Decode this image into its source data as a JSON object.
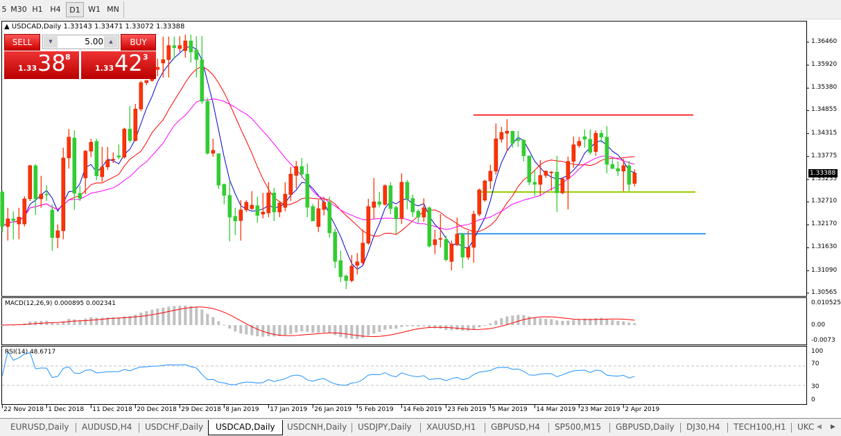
{
  "toolbar": {
    "timeframes": [
      "5",
      "M30",
      "H1",
      "H4",
      "D1",
      "W1",
      "MN"
    ],
    "active": "D1"
  },
  "chart": {
    "title": "USDCAD,Daily",
    "ohlc_header": "1.33143 1.33471 1.33072 1.33388",
    "last_price": "1.33388",
    "price_axis": [
      "1.36460",
      "1.35920",
      "1.35380",
      "1.34855",
      "1.34315",
      "1.33775",
      "1.33235",
      "1.32710",
      "1.32170",
      "1.31630",
      "1.31090",
      "1.30565"
    ],
    "dates": [
      "22 Nov 2018",
      "1 Dec 2018",
      "11 Dec 2018",
      "20 Dec 2018",
      "29 Dec 2018",
      "8 Jan 2019",
      "17 Jan 2019",
      "26 Jan 2019",
      "5 Feb 2019",
      "14 Feb 2019",
      "23 Feb 2019",
      "5 Mar 2019",
      "14 Mar 2019",
      "23 Mar 2019",
      "2 Apr 2019"
    ],
    "colors": {
      "bull": "#ff3300",
      "bear": "#33cc33",
      "ma_fast": "#0000cc",
      "ma_mid": "#ff0000",
      "ma_slow": "#ff00ff",
      "macd_hist": "#c0c0c0",
      "macd_signal": "#ff0000",
      "rsi": "#1e90ff"
    },
    "levels": [
      {
        "price": 1.3475,
        "color": "#ff3333"
      },
      {
        "price": 1.3294,
        "color": "#99cc00"
      },
      {
        "price": 1.3196,
        "color": "#3399ee"
      }
    ],
    "candles": [
      [
        1.3294,
        1.3297,
        1.32,
        1.3213
      ],
      [
        1.3213,
        1.3257,
        1.318,
        1.3231
      ],
      [
        1.3231,
        1.3249,
        1.3183,
        1.3227
      ],
      [
        1.3219,
        1.3257,
        1.3183,
        1.3235
      ],
      [
        1.3219,
        1.3284,
        1.3213,
        1.3278
      ],
      [
        1.3278,
        1.3358,
        1.3273,
        1.3356
      ],
      [
        1.3356,
        1.3359,
        1.324,
        1.3278
      ],
      [
        1.3278,
        1.3332,
        1.3257,
        1.3289
      ],
      [
        1.3289,
        1.331,
        1.3273,
        1.3288
      ],
      [
        1.3252,
        1.3265,
        1.3156,
        1.3187
      ],
      [
        1.3187,
        1.3218,
        1.3162,
        1.3203
      ],
      [
        1.3203,
        1.3398,
        1.3183,
        1.3374
      ],
      [
        1.3374,
        1.3442,
        1.3349,
        1.3423
      ],
      [
        1.3421,
        1.3439,
        1.3252,
        1.3291
      ],
      [
        1.3291,
        1.3309,
        1.3273,
        1.3279
      ],
      [
        1.3327,
        1.3393,
        1.3289,
        1.339
      ],
      [
        1.339,
        1.3419,
        1.3376,
        1.3411
      ],
      [
        1.3413,
        1.3419,
        1.3322,
        1.3332
      ],
      [
        1.333,
        1.34,
        1.3318,
        1.3353
      ],
      [
        1.3353,
        1.34,
        1.3346,
        1.3369
      ],
      [
        1.3369,
        1.3387,
        1.3362,
        1.3371
      ],
      [
        1.3379,
        1.3406,
        1.3371,
        1.3376
      ],
      [
        1.3376,
        1.3445,
        1.3372,
        1.3442
      ],
      [
        1.3442,
        1.3496,
        1.341,
        1.3415
      ],
      [
        1.3415,
        1.3501,
        1.3413,
        1.3489
      ],
      [
        1.3489,
        1.3555,
        1.3484,
        1.3551
      ],
      [
        1.3551,
        1.3556,
        1.3545,
        1.3556
      ],
      [
        1.3556,
        1.359,
        1.3553,
        1.3582
      ],
      [
        1.3582,
        1.3607,
        1.3566,
        1.3587
      ],
      [
        1.3597,
        1.3659,
        1.3563,
        1.3605
      ],
      [
        1.3605,
        1.3659,
        1.3563,
        1.3638
      ],
      [
        1.3638,
        1.3659,
        1.3607,
        1.3633
      ],
      [
        1.3631,
        1.366,
        1.3623,
        1.3638
      ],
      [
        1.3626,
        1.3664,
        1.361,
        1.3649
      ],
      [
        1.3649,
        1.3664,
        1.3598,
        1.3623
      ],
      [
        1.3628,
        1.366,
        1.3563,
        1.3605
      ],
      [
        1.3605,
        1.366,
        1.3501,
        1.3507
      ],
      [
        1.3507,
        1.3515,
        1.3382,
        1.3385
      ],
      [
        1.3385,
        1.3419,
        1.3377,
        1.3392
      ],
      [
        1.3384,
        1.3385,
        1.3301,
        1.331
      ],
      [
        1.3312,
        1.3314,
        1.3265,
        1.3286
      ],
      [
        1.3286,
        1.3318,
        1.3178,
        1.3235
      ],
      [
        1.3237,
        1.3257,
        1.3193,
        1.3226
      ],
      [
        1.3227,
        1.3275,
        1.318,
        1.3252
      ],
      [
        1.3252,
        1.3275,
        1.3247,
        1.327
      ],
      [
        1.3255,
        1.3296,
        1.3252,
        1.3263
      ],
      [
        1.3262,
        1.3283,
        1.3222,
        1.3239
      ],
      [
        1.3242,
        1.3292,
        1.3232,
        1.3247
      ],
      [
        1.3245,
        1.3317,
        1.3235,
        1.3292
      ],
      [
        1.3292,
        1.3304,
        1.3226,
        1.3247
      ],
      [
        1.3247,
        1.3273,
        1.3235,
        1.3268
      ],
      [
        1.3258,
        1.3317,
        1.3249,
        1.3289
      ],
      [
        1.3288,
        1.3353,
        1.3273,
        1.3336
      ],
      [
        1.3333,
        1.3367,
        1.3302,
        1.3354
      ],
      [
        1.3354,
        1.3374,
        1.3327,
        1.3336
      ],
      [
        1.3336,
        1.3361,
        1.3235,
        1.3258
      ],
      [
        1.326,
        1.3266,
        1.3226,
        1.3226
      ],
      [
        1.3213,
        1.3276,
        1.32,
        1.3255
      ],
      [
        1.3253,
        1.3283,
        1.3239,
        1.327
      ],
      [
        1.327,
        1.3283,
        1.3187,
        1.3198
      ],
      [
        1.32,
        1.3208,
        1.3115,
        1.3131
      ],
      [
        1.3133,
        1.3156,
        1.3082,
        1.3095
      ],
      [
        1.3097,
        1.31,
        1.3066,
        1.3086
      ],
      [
        1.3086,
        1.3146,
        1.3082,
        1.312
      ],
      [
        1.3122,
        1.3151,
        1.31,
        1.313
      ],
      [
        1.3128,
        1.3206,
        1.3122,
        1.3174
      ],
      [
        1.3174,
        1.3278,
        1.317,
        1.326
      ],
      [
        1.3258,
        1.3327,
        1.3231,
        1.3271
      ],
      [
        1.3271,
        1.3294,
        1.3258,
        1.3265
      ],
      [
        1.3265,
        1.3312,
        1.3262,
        1.3309
      ],
      [
        1.3309,
        1.3317,
        1.3242,
        1.3255
      ],
      [
        1.3258,
        1.3262,
        1.3195,
        1.3231
      ],
      [
        1.3232,
        1.3338,
        1.3219,
        1.3317
      ],
      [
        1.3317,
        1.3322,
        1.3253,
        1.3278
      ],
      [
        1.3279,
        1.3288,
        1.3235,
        1.3247
      ],
      [
        1.3249,
        1.3253,
        1.3221,
        1.3235
      ],
      [
        1.3235,
        1.3279,
        1.3224,
        1.3257
      ],
      [
        1.3257,
        1.326,
        1.3164,
        1.3167
      ],
      [
        1.317,
        1.3205,
        1.3148,
        1.3182
      ],
      [
        1.3183,
        1.3242,
        1.3164,
        1.3185
      ],
      [
        1.3183,
        1.3192,
        1.3131,
        1.3135
      ],
      [
        1.3131,
        1.318,
        1.311,
        1.3172
      ],
      [
        1.317,
        1.3234,
        1.3167,
        1.3195
      ],
      [
        1.3195,
        1.3198,
        1.3115,
        1.3141
      ],
      [
        1.3141,
        1.3203,
        1.3135,
        1.3164
      ],
      [
        1.3164,
        1.325,
        1.3128,
        1.3242
      ],
      [
        1.3242,
        1.3302,
        1.3237,
        1.3299
      ],
      [
        1.3275,
        1.3323,
        1.3271,
        1.332
      ],
      [
        1.332,
        1.3358,
        1.3301,
        1.3343
      ],
      [
        1.3343,
        1.3455,
        1.3335,
        1.3419
      ],
      [
        1.3418,
        1.3447,
        1.341,
        1.3434
      ],
      [
        1.3432,
        1.3465,
        1.339,
        1.3437
      ],
      [
        1.3437,
        1.3437,
        1.3398,
        1.3408
      ],
      [
        1.3418,
        1.3437,
        1.34,
        1.3415
      ],
      [
        1.3416,
        1.3418,
        1.3366,
        1.3379
      ],
      [
        1.3379,
        1.3379,
        1.331,
        1.3317
      ],
      [
        1.3317,
        1.3346,
        1.3284,
        1.3312
      ],
      [
        1.3312,
        1.3369,
        1.3286,
        1.3333
      ],
      [
        1.3333,
        1.3345,
        1.3327,
        1.3343
      ],
      [
        1.3341,
        1.3343,
        1.3297,
        1.3341
      ],
      [
        1.3341,
        1.3379,
        1.3247,
        1.3292
      ],
      [
        1.3292,
        1.3327,
        1.3289,
        1.3325
      ],
      [
        1.3325,
        1.3377,
        1.3253,
        1.3366
      ],
      [
        1.3366,
        1.3424,
        1.3351,
        1.3405
      ],
      [
        1.3403,
        1.3423,
        1.3398,
        1.3413
      ],
      [
        1.3424,
        1.3441,
        1.3398,
        1.3418
      ],
      [
        1.3418,
        1.3441,
        1.3382,
        1.3387
      ],
      [
        1.3389,
        1.3439,
        1.3379,
        1.3432
      ],
      [
        1.3432,
        1.3439,
        1.341,
        1.3423
      ],
      [
        1.3423,
        1.3449,
        1.3338,
        1.3359
      ],
      [
        1.3359,
        1.3374,
        1.3349,
        1.3349
      ],
      [
        1.3349,
        1.3366,
        1.3332,
        1.3343
      ],
      [
        1.3343,
        1.3372,
        1.3296,
        1.3356
      ],
      [
        1.3356,
        1.3367,
        1.3296,
        1.3312
      ],
      [
        1.33143,
        1.33471,
        1.33072,
        1.33388
      ]
    ]
  },
  "trade": {
    "sell": "SELL",
    "buy": "BUY",
    "lot": "5.00",
    "bid_prefix": "1.33",
    "bid_big": "38",
    "bid_sup": "8",
    "ask_prefix": "1.33",
    "ask_big": "42",
    "ask_sup": "3"
  },
  "macd": {
    "label": "MACD(12,26,9) 0.000895 0.002341",
    "axis": [
      "0.010525",
      "0.00",
      "-0.0073"
    ]
  },
  "rsi": {
    "label": "RSI(14) 48.6717",
    "axis": [
      "100",
      "70",
      "30",
      "0"
    ]
  },
  "tabs": [
    "EURUSD,Daily",
    "AUDUSD,H4",
    "USDCHF,Daily",
    "USDCAD,Daily",
    "USDCNH,Daily",
    "USDJPY,Daily",
    "XAUUSD,H1",
    "GBPUSD,H4",
    "SP500,M15",
    "GBPUSD,Daily",
    "DJ30,H4",
    "TECH100,H1",
    "UKC"
  ],
  "active_tab": "USDCAD,Daily"
}
